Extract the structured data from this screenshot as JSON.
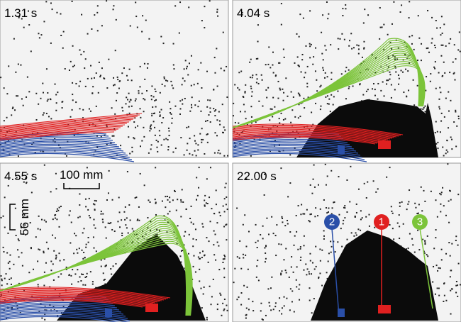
{
  "panels": [
    {
      "time": "1.31 s"
    },
    {
      "time": "4.04 s"
    },
    {
      "time": "4.55 s",
      "scale_x": "100 mm",
      "scale_y": "56 mm"
    },
    {
      "time": "22.00 s",
      "markers": [
        "2",
        "1",
        "3"
      ]
    }
  ]
}
